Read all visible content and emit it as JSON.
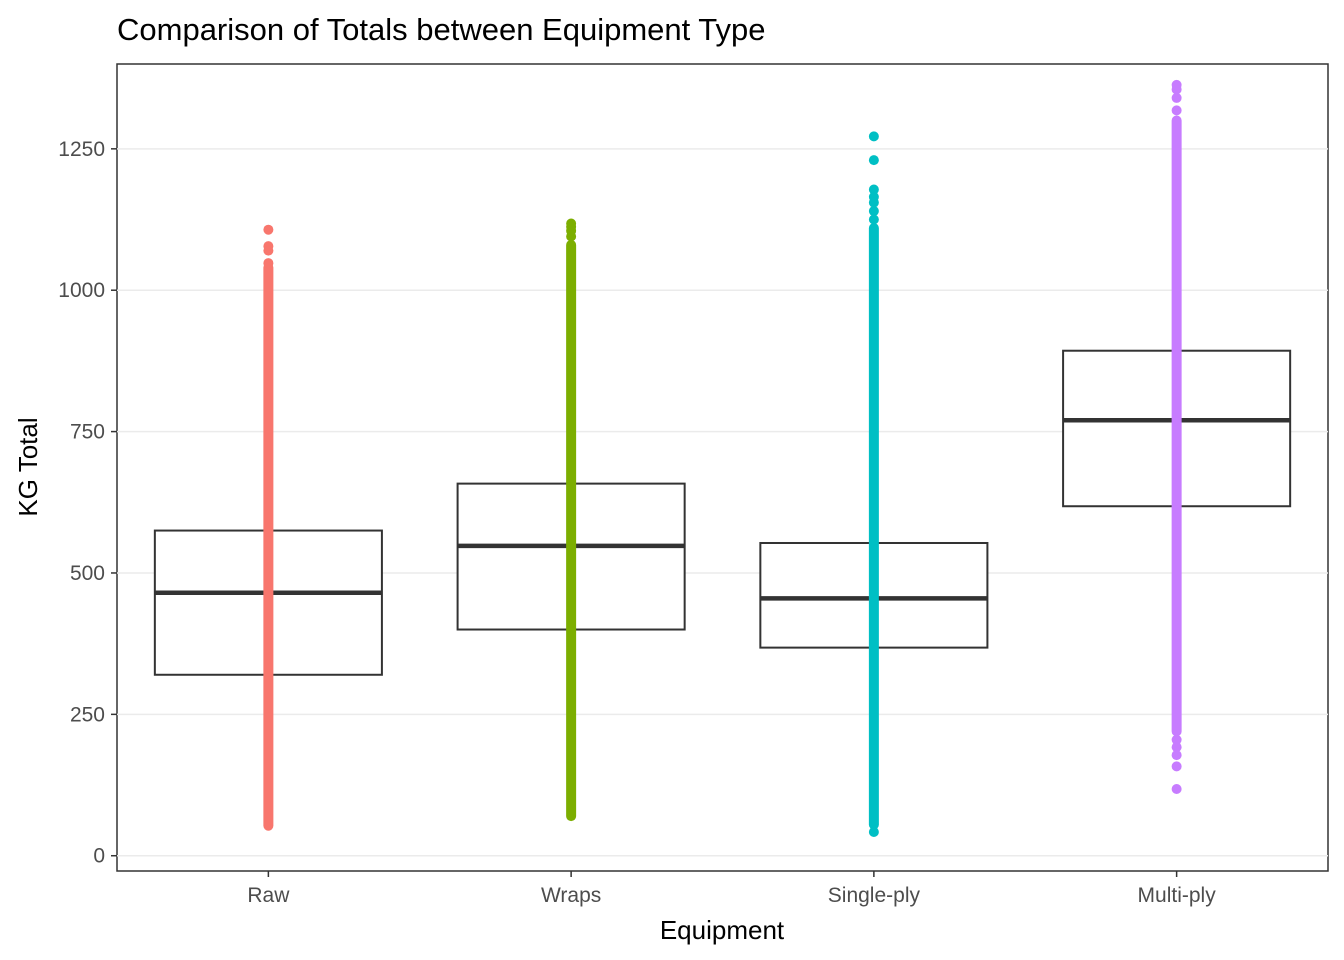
{
  "chart_data": {
    "type": "boxplot",
    "title": "Comparison of Totals between Equipment Type",
    "xlabel": "Equipment",
    "ylabel": "KG Total",
    "ylim": [
      -27,
      1400
    ],
    "yticks": [
      0,
      250,
      500,
      750,
      1000,
      1250
    ],
    "grid": "horizontal",
    "categories": [
      "Raw",
      "Wraps",
      "Single-ply",
      "Multi-ply"
    ],
    "series": [
      {
        "category": "Raw",
        "color": "#F8766D",
        "q1": 320,
        "median": 465,
        "q3": 575,
        "points_range": [
          53,
          1040
        ],
        "outliers": [
          1048,
          1070,
          1078,
          1107
        ]
      },
      {
        "category": "Wraps",
        "color": "#7CAE00",
        "q1": 400,
        "median": 548,
        "q3": 658,
        "points_range": [
          70,
          1080
        ],
        "outliers": [
          1095,
          1105,
          1112,
          1118
        ]
      },
      {
        "category": "Single-ply",
        "color": "#00BFC4",
        "q1": 368,
        "median": 455,
        "q3": 553,
        "points_range": [
          55,
          1110
        ],
        "outliers": [
          42,
          1125,
          1140,
          1155,
          1165,
          1178,
          1230,
          1272
        ]
      },
      {
        "category": "Multi-ply",
        "color": "#C77CFF",
        "q1": 618,
        "median": 770,
        "q3": 893,
        "points_range": [
          220,
          1300
        ],
        "outliers": [
          118,
          158,
          178,
          192,
          205,
          1318,
          1340,
          1355,
          1363
        ]
      }
    ]
  }
}
